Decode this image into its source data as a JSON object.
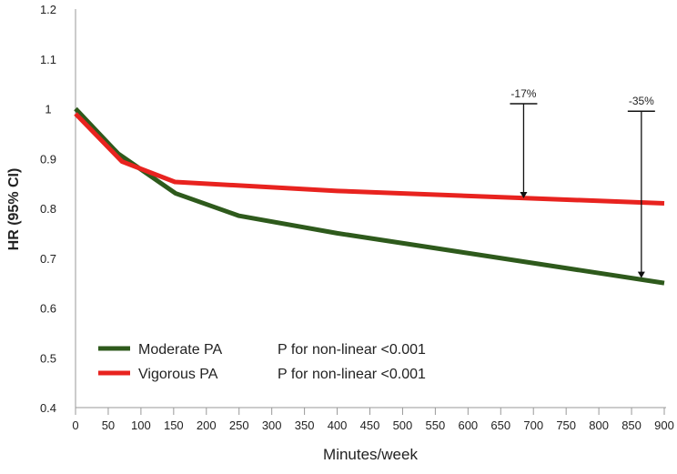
{
  "chart_data": {
    "type": "line",
    "title": "",
    "xlabel": "Minutes/week",
    "ylabel": "HR (95% CI)",
    "xlim": [
      0,
      900
    ],
    "ylim": [
      0.4,
      1.2
    ],
    "xticks": [
      0,
      50,
      100,
      150,
      200,
      250,
      300,
      350,
      400,
      450,
      500,
      550,
      600,
      650,
      700,
      750,
      800,
      850,
      900
    ],
    "yticks": [
      0.4,
      0.5,
      0.6,
      0.7,
      0.8,
      0.9,
      1,
      1.1,
      1.2
    ],
    "ytick_labels": [
      "0.4",
      "0.5",
      "0.6",
      "0.7",
      "0.8",
      "0.9",
      "1",
      "1.1",
      "1.2"
    ],
    "grid": false,
    "legend_position": "bottom-left",
    "series": [
      {
        "name": "Moderate PA",
        "note": "P for non-linear <0.001",
        "color": "#2e5a1c",
        "x": [
          0,
          65,
          153,
          250,
          400,
          600,
          900
        ],
        "y": [
          1.0,
          0.91,
          0.83,
          0.785,
          0.75,
          0.71,
          0.65
        ]
      },
      {
        "name": "Vigorous PA",
        "note": "P for non-linear <0.001",
        "color": "#e8231f",
        "x": [
          0,
          71,
          152,
          400,
          900
        ],
        "y": [
          0.99,
          0.894,
          0.853,
          0.835,
          0.81
        ]
      }
    ],
    "annotations": [
      {
        "text": "-17%",
        "x": 685,
        "y_from": 1.01,
        "y_to": 0.82
      },
      {
        "text": "-35%",
        "x": 865,
        "y_from": 0.995,
        "y_to": 0.66
      }
    ]
  }
}
